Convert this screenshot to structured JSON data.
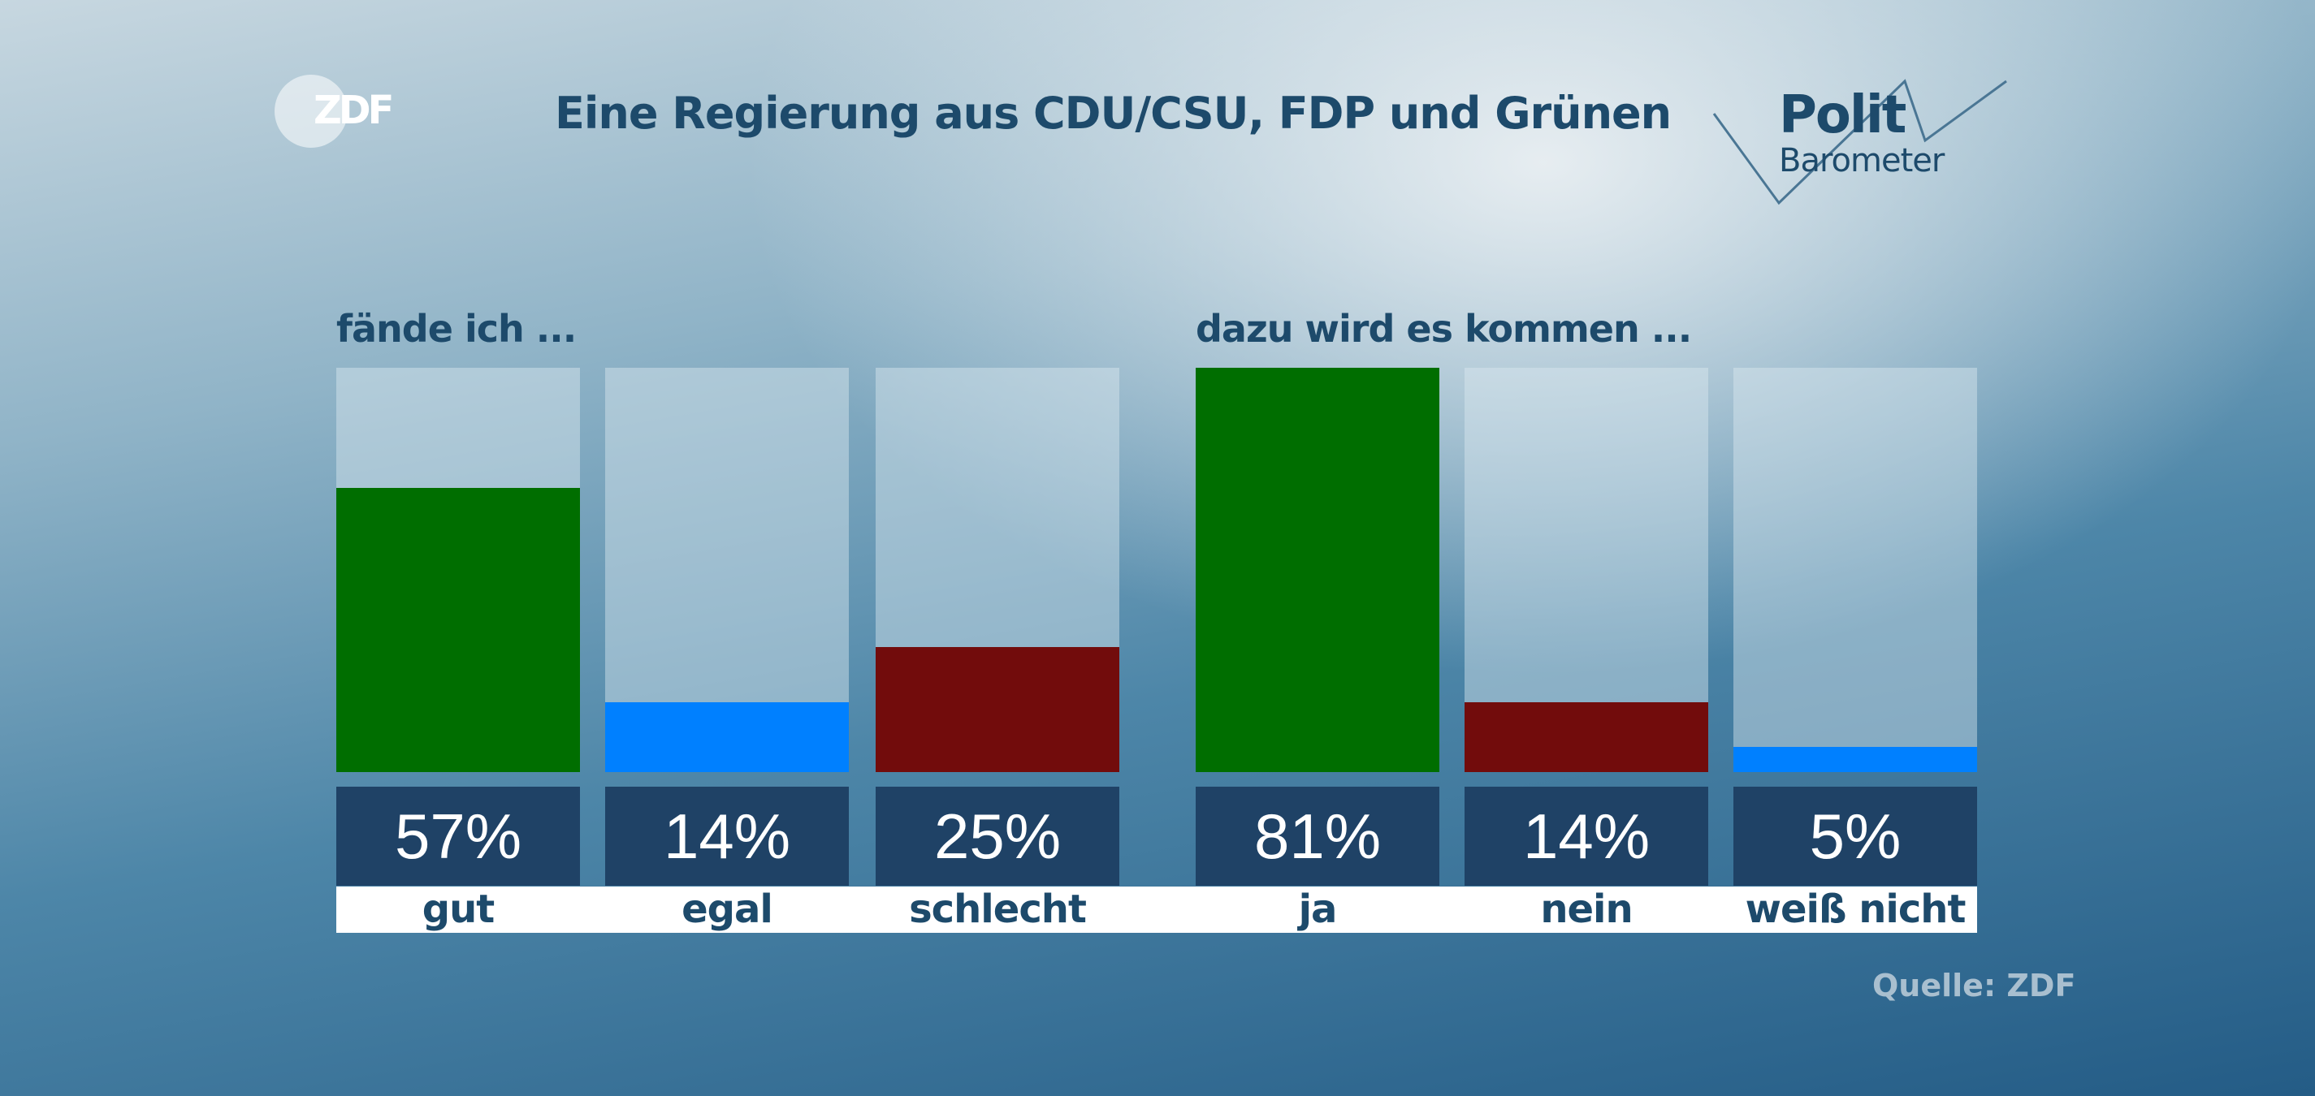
{
  "header": {
    "title": "Eine Regierung aus CDU/CSU, FDP und Grünen",
    "logo_left": "ZDF",
    "logo_right_line1": "Polit",
    "logo_right_line2": "Barometer"
  },
  "source": "Quelle: ZDF",
  "chart_data": {
    "type": "bar",
    "title": "Eine Regierung aus CDU/CSU, FDP und Grünen",
    "ylim": [
      0,
      81
    ],
    "groups": [
      {
        "label": "fände ich ...",
        "categories": [
          "gut",
          "egal",
          "schlecht"
        ],
        "values": [
          57,
          14,
          25
        ],
        "value_labels": [
          "57%",
          "14%",
          "25%"
        ],
        "colors": [
          "#006e00",
          "#0080ff",
          "#720c0c"
        ]
      },
      {
        "label": "dazu wird es kommen ...",
        "categories": [
          "ja",
          "nein",
          "weiß nicht"
        ],
        "values": [
          81,
          14,
          5
        ],
        "value_labels": [
          "81%",
          "14%",
          "5%"
        ],
        "colors": [
          "#006e00",
          "#720c0c",
          "#0080ff"
        ]
      }
    ]
  }
}
